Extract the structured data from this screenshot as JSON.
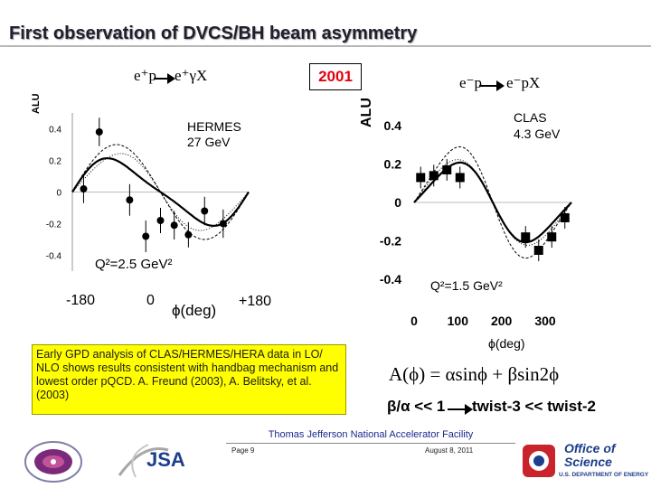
{
  "title": "First observation of DVCS/BH beam asymmetry",
  "year": "2001",
  "hermes": {
    "reaction": {
      "lhs": "e⁺p",
      "rhs": "e⁺γX"
    },
    "experiment": "HERMES",
    "energy": "27 GeV",
    "q2": "Q²=2.5 GeV²",
    "y_axis_label": "ALU",
    "y_ticks": [
      "0.4",
      "0.2",
      "0",
      "-0.2",
      "-0.4"
    ],
    "x_ticks": [
      "-180",
      "0",
      "+180"
    ],
    "x_axis_label": "ϕ(deg)",
    "chart_data": {
      "type": "scatter",
      "xlabel": "ϕ(deg)",
      "ylabel": "ALU",
      "xlim": [
        -180,
        180
      ],
      "ylim": [
        -0.5,
        0.5
      ],
      "points": [
        {
          "x": -157,
          "y": 0.02,
          "err": 0.09
        },
        {
          "x": -125,
          "y": 0.38,
          "err": 0.09
        },
        {
          "x": -63,
          "y": -0.05,
          "err": 0.1
        },
        {
          "x": -30,
          "y": -0.28,
          "err": 0.1
        },
        {
          "x": 0,
          "y": -0.18,
          "err": 0.08
        },
        {
          "x": 28,
          "y": -0.21,
          "err": 0.09
        },
        {
          "x": 57,
          "y": -0.27,
          "err": 0.08
        },
        {
          "x": 90,
          "y": -0.12,
          "err": 0.09
        },
        {
          "x": 128,
          "y": -0.2,
          "err": 0.09
        }
      ]
    }
  },
  "clas": {
    "reaction": {
      "lhs": "e⁻p",
      "rhs": "e⁻pX"
    },
    "experiment": "CLAS",
    "energy": "4.3 GeV",
    "q2": "Q²=1.5 GeV²",
    "y_axis_label": "ALU",
    "y_ticks": [
      "0.4",
      "0.2",
      "0",
      "-0.2",
      "-0.4"
    ],
    "x_ticks": [
      "0",
      "100",
      "200",
      "300"
    ],
    "x_axis_label": "ϕ(deg)",
    "chart_data": {
      "type": "scatter",
      "xlabel": "ϕ(deg)",
      "ylabel": "ALU",
      "xlim": [
        0,
        360
      ],
      "ylim": [
        -0.5,
        0.5
      ],
      "points": [
        {
          "x": 15,
          "y": 0.13
        },
        {
          "x": 45,
          "y": 0.14
        },
        {
          "x": 75,
          "y": 0.17
        },
        {
          "x": 105,
          "y": 0.13
        },
        {
          "x": 255,
          "y": -0.18
        },
        {
          "x": 285,
          "y": -0.25
        },
        {
          "x": 315,
          "y": -0.18
        },
        {
          "x": 345,
          "y": -0.08
        }
      ]
    }
  },
  "text_box": "Early GPD analysis of CLAS/HERMES/HERA data in LO/ NLO shows results consistent with handbag mechanism and lowest order pQCD.  A. Freund (2003), A. Belitsky, et al. (2003)",
  "formula": "A(ϕ) = αsinϕ + βsin2ϕ",
  "twist": {
    "lhs": "β/α << 1",
    "rhs": "twist-3 << twist-2"
  },
  "footer": {
    "lab": "Thomas Jefferson National Accelerator Facility",
    "page": "Page 9",
    "date": "August 8, 2011",
    "logo_office_lines": [
      "Office of",
      "Science"
    ],
    "logo_doe": "U.S. DEPARTMENT OF ENERGY",
    "logo_jsa": "JSA"
  }
}
